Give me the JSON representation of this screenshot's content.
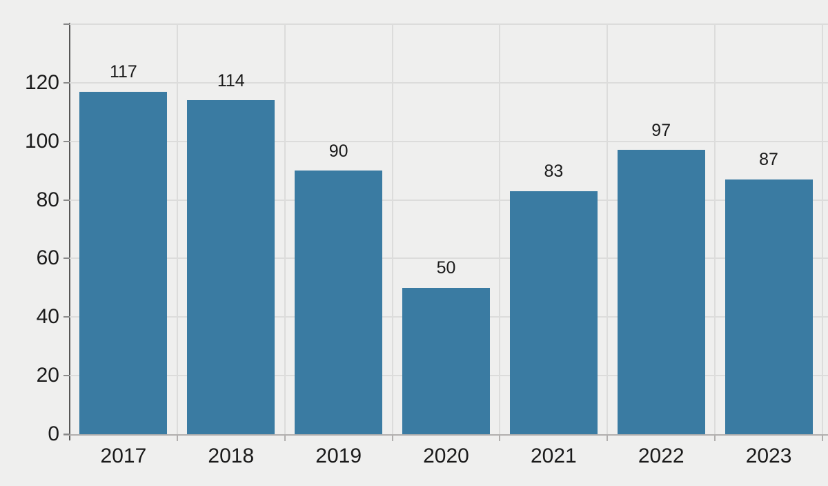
{
  "chart_data": {
    "type": "bar",
    "categories": [
      "2017",
      "2018",
      "2019",
      "2020",
      "2021",
      "2022",
      "2023"
    ],
    "values": [
      117,
      114,
      90,
      50,
      83,
      97,
      87
    ],
    "series_name": "",
    "bar_value_labels": true,
    "ylim": [
      0,
      140
    ],
    "yticks_labeled": [
      0,
      20,
      40,
      60,
      80,
      100,
      120
    ],
    "grid_levels": [
      20,
      40,
      60,
      80,
      100,
      120,
      140
    ],
    "grid": "on",
    "legend": "none",
    "colors": {
      "bar": "#3a7ba2",
      "background": "#efefee",
      "gridline": "#dcdcdb",
      "y_axis_line": "#565656",
      "x_axis_line": "#b1afae",
      "y_tick": "#8a8a8a",
      "label_text": "#1a1a1a"
    }
  }
}
